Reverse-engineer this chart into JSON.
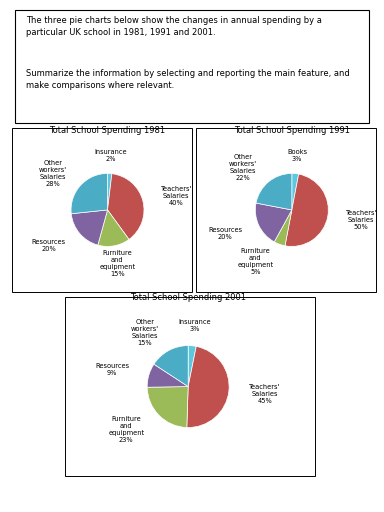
{
  "title_text": "The three pie charts below show the changes in annual spending by a particular UK school in 1981, 1991 and 2001.\n\nSummarize the information by selecting and reporting the main feature, and make comparisons where relevant.",
  "charts": [
    {
      "title": "Total School Spending 1981",
      "short_labels": [
        "Insurance",
        "Teachers'\nSalaries",
        "Furniture\nand\nequipment",
        "Resources",
        "Other\nworkers'\nSalaries"
      ],
      "pct_labels": [
        "2%",
        "40%",
        "15%",
        "20%",
        "28%"
      ],
      "values": [
        2,
        40,
        15,
        20,
        28
      ],
      "colors": [
        "#5bc8e0",
        "#c0504d",
        "#9bbb59",
        "#8064a2",
        "#4bacc6"
      ]
    },
    {
      "title": "Total School Spending 1991",
      "short_labels": [
        "Books",
        "Teachers'\nSalaries",
        "Furniture\nand\nequipment",
        "Resources",
        "Other\nworkers'\nSalaries"
      ],
      "pct_labels": [
        "3%",
        "50%",
        "5%",
        "20%",
        "22%"
      ],
      "values": [
        3,
        50,
        5,
        20,
        22
      ],
      "colors": [
        "#5bc8e0",
        "#c0504d",
        "#9bbb59",
        "#8064a2",
        "#4bacc6"
      ]
    },
    {
      "title": "Total School Spending 2001",
      "short_labels": [
        "Insurance",
        "Teachers'\nSalaries",
        "Furniture\nand\nequipment",
        "Resources",
        "Other\nworkers'\nSalaries"
      ],
      "pct_labels": [
        "3%",
        "45%",
        "23%",
        "9%",
        "15%"
      ],
      "values": [
        3,
        45,
        23,
        9,
        15
      ],
      "colors": [
        "#5bc8e0",
        "#c0504d",
        "#9bbb59",
        "#8064a2",
        "#4bacc6"
      ]
    }
  ]
}
